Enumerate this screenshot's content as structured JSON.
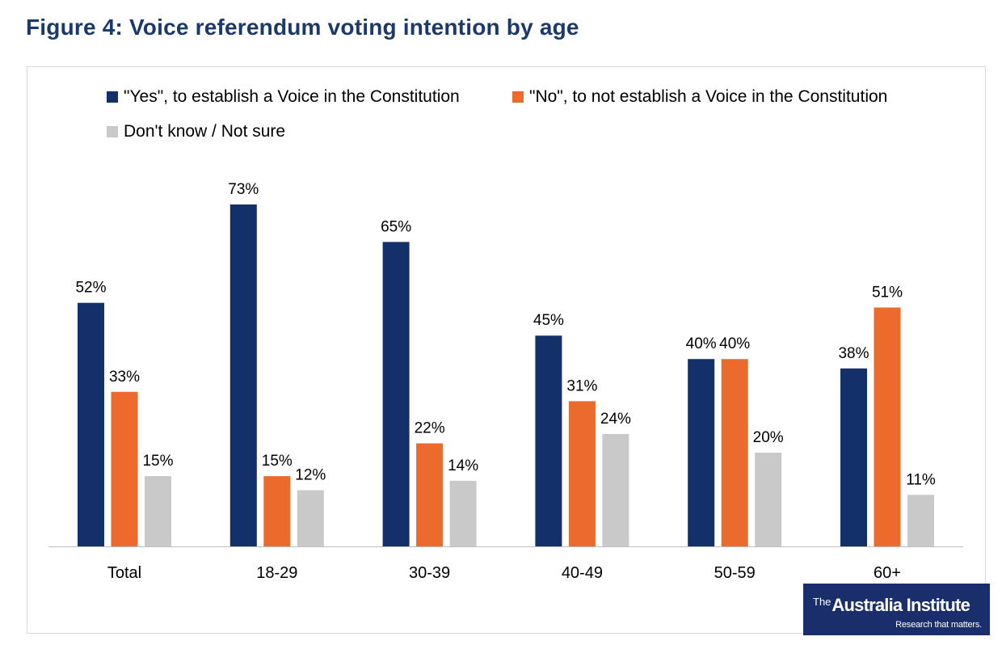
{
  "figure_title": "Figure 4: Voice referendum voting intention by age",
  "colors": {
    "yes": "#14306a",
    "no": "#eb6a2c",
    "dont_know": "#c9c9c9",
    "title": "#1b3a6b",
    "axis": "#bfbfbf"
  },
  "logo": {
    "prefix": "The",
    "name": "Australia Institute",
    "tagline": "Research that matters."
  },
  "chart_data": {
    "type": "bar",
    "title": "Figure 4: Voice referendum voting intention by age",
    "xlabel": "",
    "ylabel": "",
    "categories": [
      "Total",
      "18-29",
      "30-39",
      "40-49",
      "50-59",
      "60+"
    ],
    "series": [
      {
        "name": "\"Yes\", to establish a Voice in the Constitution",
        "values": [
          52,
          73,
          65,
          45,
          40,
          38
        ]
      },
      {
        "name": "\"No\", to not establish a Voice in the Constitution",
        "values": [
          33,
          15,
          22,
          31,
          40,
          51
        ]
      },
      {
        "name": "Don't know / Not sure",
        "values": [
          15,
          12,
          14,
          24,
          20,
          11
        ]
      }
    ],
    "value_suffix": "%",
    "ylim": [
      0,
      80
    ],
    "grid": false,
    "legend_position": "top-left"
  }
}
